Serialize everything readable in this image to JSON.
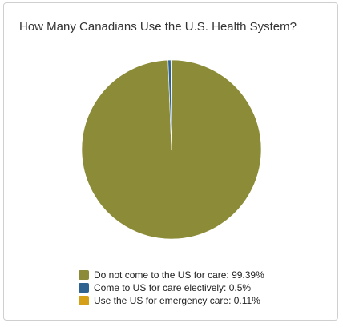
{
  "chart_data": {
    "type": "pie",
    "title": "How Many Canadians Use the U.S. Health System?",
    "series": [
      {
        "name": "Do not come to the US for care: 99.39%",
        "value": 99.39,
        "color": "#8c8c38"
      },
      {
        "name": "Come to US for care electively: 0.5%",
        "value": 0.5,
        "color": "#2e6391"
      },
      {
        "name": "Use the US for emergency care: 0.11%",
        "value": 0.11,
        "color": "#d4a017"
      }
    ],
    "legend_position": "bottom"
  }
}
